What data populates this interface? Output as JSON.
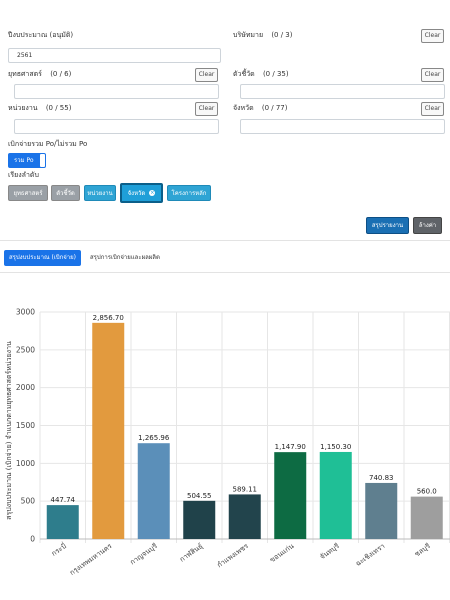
{
  "filters": {
    "year": {
      "label": "ปีงบประมาณ (อนุมัติ)",
      "value": "2561"
    },
    "program": {
      "label": "บริษัทมาย",
      "count": "(0 / 3)",
      "clear": "Clear"
    },
    "strategy": {
      "label": "ยุทธศาสตร์",
      "count": "(0 / 6)",
      "clear": "Clear"
    },
    "indicator": {
      "label": "ตัวชี้วัด",
      "count": "(0 / 35)",
      "clear": "Clear"
    },
    "agency": {
      "label": "หน่วยงาน",
      "count": "(0 / 55)",
      "clear": "Clear"
    },
    "province": {
      "label": "จังหวัด",
      "count": "(0 / 77)",
      "clear": "Clear"
    },
    "po": {
      "label": "เบิกจ่ายรวม Po/ไม่รวม Po",
      "toggle_label": "รวม Po"
    }
  },
  "sort": {
    "label": "เรียงลำดับ",
    "chips": [
      "ยุทธศาสตร์",
      "ตัวชี้วัด",
      "หน่วยงาน",
      "จังหวัด",
      "โครงการหลัก"
    ]
  },
  "actions": {
    "summary": "สรุปรายงาน",
    "clear": "ล้างค่า"
  },
  "tabs": {
    "active": "สรุปงบประมาณ (เบิกจ่าย)",
    "inactive": "สรุปการเบิกจ่ายและผลผลิต"
  },
  "colors": {
    "primary": "#1a73e8",
    "bars": [
      "#2e7d8c",
      "#e29a3e",
      "#5b8fb9",
      "#20424a",
      "#22444c",
      "#0d6b43",
      "#1fbf96",
      "#5f7f8f",
      "#9e9e9e"
    ]
  },
  "chart_data": {
    "type": "bar",
    "ylabel": "สรุปงบประมาณ (เบิกจ่าย) จำแนกตามยุทธศาสตร์หน่วยงาน",
    "ylim": [
      0,
      3000
    ],
    "yticks": [
      "0",
      "500",
      "1000",
      "1500",
      "2000",
      "2500",
      "3000"
    ],
    "categories": [
      "กระบี่",
      "กรุงเทพมหานคร",
      "กาญจนบุรี",
      "กาฬสินธุ์",
      "กำแพงเพชร",
      "ขอนแก่น",
      "จันทบุรี",
      "ฉะเชิงเทรา",
      "ชลบุรี"
    ],
    "values": [
      447.74,
      2856.7,
      1265.96,
      504.55,
      589.11,
      1147.9,
      1150.3,
      740.83,
      560.0
    ],
    "value_labels": [
      "447.74",
      "2,856.70",
      "1,265.96",
      "504.55",
      "589.11",
      "1,147.90",
      "1,150.30",
      "740.83",
      "560.0"
    ],
    "grid": true
  }
}
